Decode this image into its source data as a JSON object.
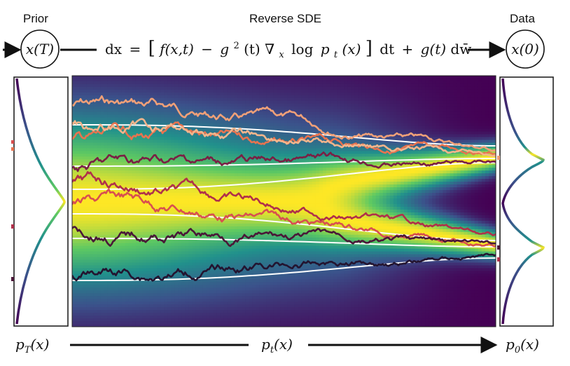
{
  "header": {
    "prior_label": "Prior",
    "title": "Reverse SDE",
    "data_label": "Data",
    "xT": "x(T)",
    "x0": "x(0)",
    "equation": {
      "lhs": "dx",
      "eq": "=",
      "lbr": "[",
      "f": "f(x,t)",
      "minus": "−",
      "g2": "g",
      "sq": "2",
      "g2t": "(t)",
      "nabla": "∇",
      "nsub": "x",
      "log": "log",
      "p": "p",
      "psub": "t",
      "px": "(x)",
      "rbr": "]",
      "dt": "dt",
      "plus": "+",
      "g": "g(t)",
      "dw": "dw̄"
    }
  },
  "footer": {
    "pT": {
      "p": "p",
      "sub": "T",
      "arg": "(x)"
    },
    "pt": {
      "p": "p",
      "sub": "t",
      "arg": "(x)"
    },
    "p0": {
      "p": "p",
      "sub": "0",
      "arg": "(x)"
    }
  },
  "colors": {
    "viridis": [
      "#440154",
      "#3b528b",
      "#21918c",
      "#5ec962",
      "#fde725"
    ],
    "trajectories": [
      "#f0a078",
      "#e8734f",
      "#d94f4f",
      "#b0304a",
      "#7a1f45",
      "#4a1838",
      "#231430",
      "#f3b58c"
    ],
    "flow_lines": "#ffffff"
  }
}
